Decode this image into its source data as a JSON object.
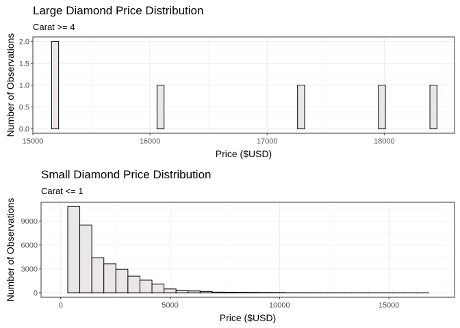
{
  "chart_data": [
    {
      "type": "bar",
      "title": "Large Diamond Price Distribution",
      "subtitle": "Carat >= 4",
      "xlabel": "Price ($USD)",
      "ylabel": "Number of Observations",
      "xlim": [
        15000,
        18600
      ],
      "ylim": [
        0,
        2.0
      ],
      "x_ticks": [
        15000,
        16000,
        17000,
        18000
      ],
      "y_ticks": [
        0.0,
        0.5,
        1.0,
        1.5,
        2.0
      ],
      "y_tick_labels": [
        "0.0",
        "0.5",
        "1.0",
        "1.5",
        "2.0"
      ],
      "bin_width": 60,
      "bins": [
        {
          "x_start": 15100,
          "x_end": 15160,
          "count": 0
        },
        {
          "x_start": 15160,
          "x_end": 15220,
          "count": 2
        },
        {
          "x_start": 15220,
          "x_end": 15280,
          "count": 0
        },
        {
          "x_start": 15280,
          "x_end": 15340,
          "count": 0
        },
        {
          "x_start": 15340,
          "x_end": 15400,
          "count": 0
        },
        {
          "x_start": 15400,
          "x_end": 15460,
          "count": 0
        },
        {
          "x_start": 15460,
          "x_end": 15520,
          "count": 0
        },
        {
          "x_start": 15520,
          "x_end": 15580,
          "count": 0
        },
        {
          "x_start": 15580,
          "x_end": 15640,
          "count": 0
        },
        {
          "x_start": 15640,
          "x_end": 15700,
          "count": 0
        },
        {
          "x_start": 15700,
          "x_end": 15760,
          "count": 0
        },
        {
          "x_start": 15760,
          "x_end": 15820,
          "count": 0
        },
        {
          "x_start": 15820,
          "x_end": 15880,
          "count": 0
        },
        {
          "x_start": 15880,
          "x_end": 15940,
          "count": 0
        },
        {
          "x_start": 15940,
          "x_end": 16000,
          "count": 0
        },
        {
          "x_start": 16000,
          "x_end": 16060,
          "count": 0
        },
        {
          "x_start": 16060,
          "x_end": 16120,
          "count": 1
        },
        {
          "x_start": 16120,
          "x_end": 17200,
          "count": 0
        },
        {
          "x_start": 17200,
          "x_end": 17260,
          "count": 0
        },
        {
          "x_start": 17260,
          "x_end": 17320,
          "count": 1
        },
        {
          "x_start": 17320,
          "x_end": 17950,
          "count": 0
        },
        {
          "x_start": 17950,
          "x_end": 18010,
          "count": 1
        },
        {
          "x_start": 18010,
          "x_end": 18390,
          "count": 0
        },
        {
          "x_start": 18390,
          "x_end": 18450,
          "count": 1
        },
        {
          "x_start": 18450,
          "x_end": 18510,
          "count": 0
        }
      ]
    },
    {
      "type": "bar",
      "title": "Small Diamond Price Distribution",
      "subtitle": "Carat <= 1",
      "xlabel": "Price ($USD)",
      "ylabel": "Number of Observations",
      "xlim": [
        -900,
        18000
      ],
      "ylim": [
        0,
        10800
      ],
      "x_ticks": [
        0,
        5000,
        10000,
        15000
      ],
      "y_ticks": [
        0,
        3000,
        6000,
        9000
      ],
      "bin_width": 550,
      "bins": [
        {
          "x_start": 320,
          "x_end": 870,
          "count": 10800
        },
        {
          "x_start": 870,
          "x_end": 1420,
          "count": 8500
        },
        {
          "x_start": 1420,
          "x_end": 1970,
          "count": 4400
        },
        {
          "x_start": 1970,
          "x_end": 2520,
          "count": 3650
        },
        {
          "x_start": 2520,
          "x_end": 3070,
          "count": 2950
        },
        {
          "x_start": 3070,
          "x_end": 3620,
          "count": 2100
        },
        {
          "x_start": 3620,
          "x_end": 4170,
          "count": 1600
        },
        {
          "x_start": 4170,
          "x_end": 4720,
          "count": 1100
        },
        {
          "x_start": 4720,
          "x_end": 5270,
          "count": 500
        },
        {
          "x_start": 5270,
          "x_end": 5820,
          "count": 280
        },
        {
          "x_start": 5820,
          "x_end": 6370,
          "count": 250
        },
        {
          "x_start": 6370,
          "x_end": 6920,
          "count": 200
        },
        {
          "x_start": 6920,
          "x_end": 7470,
          "count": 110
        },
        {
          "x_start": 7470,
          "x_end": 8020,
          "count": 90
        },
        {
          "x_start": 8020,
          "x_end": 8570,
          "count": 70
        },
        {
          "x_start": 8570,
          "x_end": 9120,
          "count": 60
        },
        {
          "x_start": 9120,
          "x_end": 9670,
          "count": 50
        },
        {
          "x_start": 9670,
          "x_end": 10220,
          "count": 40
        },
        {
          "x_start": 10220,
          "x_end": 10770,
          "count": 15
        },
        {
          "x_start": 10770,
          "x_end": 11320,
          "count": 12
        },
        {
          "x_start": 11320,
          "x_end": 11870,
          "count": 10
        },
        {
          "x_start": 11870,
          "x_end": 12420,
          "count": 8
        },
        {
          "x_start": 12420,
          "x_end": 12970,
          "count": 6
        },
        {
          "x_start": 12970,
          "x_end": 13520,
          "count": 5
        },
        {
          "x_start": 13520,
          "x_end": 14070,
          "count": 4
        },
        {
          "x_start": 14070,
          "x_end": 14620,
          "count": 3
        },
        {
          "x_start": 14620,
          "x_end": 15170,
          "count": 3
        },
        {
          "x_start": 15170,
          "x_end": 15720,
          "count": 2
        },
        {
          "x_start": 15720,
          "x_end": 16270,
          "count": 2
        },
        {
          "x_start": 16270,
          "x_end": 16820,
          "count": 1
        }
      ]
    }
  ]
}
